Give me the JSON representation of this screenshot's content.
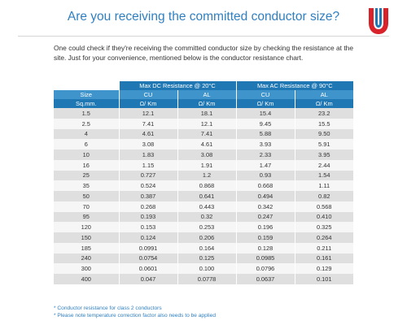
{
  "title": "Are you receiving the committed conductor size?",
  "logo_icon": "cable-manufacturer-logo-icon",
  "colors": {
    "accent": "#2f7fc1",
    "header": "#1f78b4",
    "header_light": "#3f94cc",
    "logo_red": "#d9232a"
  },
  "intro": "One could check if they're receiving the committed conductor size by checking the resistance at the site. Just for your convenience, mentioned below is the conductor resistance chart.",
  "table": {
    "group_dc": "Max DC Resistance @ 20°C",
    "group_ac": "Max AC Resistance @ 90°C",
    "size_label": "Size",
    "size_unit": "Sq.mm.",
    "sub_cu": "CU",
    "sub_al": "AL",
    "unit": "Ω/ Km",
    "rows": [
      [
        "1.5",
        "12.1",
        "18.1",
        "15.4",
        "23.2"
      ],
      [
        "2.5",
        "7.41",
        "12.1",
        "9.45",
        "15.5"
      ],
      [
        "4",
        "4.61",
        "7.41",
        "5.88",
        "9.50"
      ],
      [
        "6",
        "3.08",
        "4.61",
        "3.93",
        "5.91"
      ],
      [
        "10",
        "1.83",
        "3.08",
        "2.33",
        "3.95"
      ],
      [
        "16",
        "1.15",
        "1.91",
        "1.47",
        "2.44"
      ],
      [
        "25",
        "0.727",
        "1.2",
        "0.93",
        "1.54"
      ],
      [
        "35",
        "0.524",
        "0.868",
        "0.668",
        "1.11"
      ],
      [
        "50",
        "0.387",
        "0.641",
        "0.494",
        "0.82"
      ],
      [
        "70",
        "0.268",
        "0.443",
        "0.342",
        "0.568"
      ],
      [
        "95",
        "0.193",
        "0.32",
        "0.247",
        "0.410"
      ],
      [
        "120",
        "0.153",
        "0.253",
        "0.196",
        "0.325"
      ],
      [
        "150",
        "0.124",
        "0.206",
        "0.159",
        "0.264"
      ],
      [
        "185",
        "0.0991",
        "0.164",
        "0.128",
        "0.211"
      ],
      [
        "240",
        "0.0754",
        "0.125",
        "0.0985",
        "0.161"
      ],
      [
        "300",
        "0.0601",
        "0.100",
        "0.0796",
        "0.129"
      ],
      [
        "400",
        "0.047",
        "0.0778",
        "0.0637",
        "0.101"
      ]
    ]
  },
  "notes": [
    "* Conductor resistance for class 2 conductors",
    "* Please note temperature correction factor also needs to be applied"
  ]
}
